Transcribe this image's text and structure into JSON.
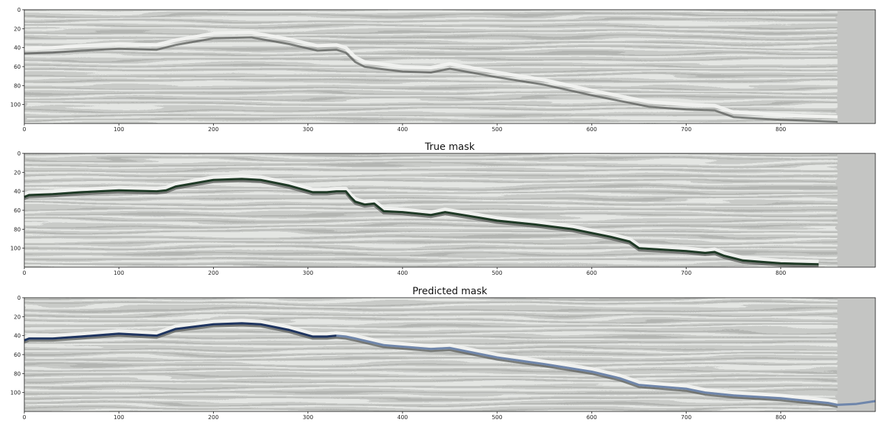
{
  "chart_data": [
    {
      "type": "heatmap",
      "title": "",
      "xlabel": "",
      "ylabel": "",
      "xlim": [
        0,
        900
      ],
      "ylim": [
        120,
        0
      ],
      "xticks": [
        0,
        100,
        200,
        300,
        400,
        500,
        600,
        700,
        800
      ],
      "yticks": [
        0,
        20,
        40,
        60,
        80,
        100
      ],
      "data_extent_x": 860,
      "grid": false,
      "horizon": {
        "x": [
          0,
          30,
          60,
          100,
          140,
          160,
          200,
          240,
          280,
          310,
          330,
          340,
          350,
          360,
          375,
          400,
          430,
          450,
          500,
          550,
          600,
          640,
          660,
          700,
          730,
          750,
          800,
          860
        ],
        "y": [
          44,
          43,
          41,
          39,
          40,
          35,
          28,
          27,
          34,
          41,
          40,
          43,
          53,
          58,
          60,
          63,
          64,
          60,
          69,
          77,
          88,
          96,
          100,
          103,
          104,
          111,
          114,
          116
        ]
      }
    },
    {
      "type": "heatmap",
      "title": "True mask",
      "xlabel": "",
      "ylabel": "",
      "xlim": [
        0,
        900
      ],
      "ylim": [
        120,
        0
      ],
      "xticks": [
        0,
        100,
        200,
        300,
        400,
        500,
        600,
        700,
        800
      ],
      "yticks": [
        0,
        20,
        40,
        60,
        80,
        100
      ],
      "data_extent_x": 860,
      "grid": false,
      "mask_color": "#1f3a26",
      "mask_line": {
        "x": [
          0,
          5,
          30,
          60,
          100,
          140,
          150,
          160,
          200,
          230,
          250,
          280,
          305,
          320,
          330,
          340,
          345,
          350,
          360,
          370,
          375,
          380,
          400,
          430,
          445,
          470,
          500,
          540,
          580,
          620,
          640,
          650,
          700,
          720,
          730,
          740,
          760,
          800,
          840
        ],
        "y": [
          46,
          44,
          43,
          41,
          39,
          40,
          39,
          35,
          28,
          27,
          28,
          34,
          41,
          41,
          40,
          40,
          46,
          51,
          54,
          53,
          57,
          61,
          62,
          65,
          62,
          66,
          71,
          75,
          80,
          88,
          93,
          100,
          103,
          105,
          104,
          108,
          113,
          116,
          117
        ]
      }
    },
    {
      "type": "heatmap",
      "title": "Predicted mask",
      "xlabel": "",
      "ylabel": "",
      "xlim": [
        0,
        900
      ],
      "ylim": [
        120,
        0
      ],
      "xticks": [
        0,
        100,
        200,
        300,
        400,
        500,
        600,
        700,
        800
      ],
      "yticks": [
        0,
        20,
        40,
        60,
        80,
        100
      ],
      "data_extent_x": 860,
      "grid": false,
      "mask_color_dark": "#1f3560",
      "mask_color_light": "#6f86ab",
      "mask_split_x": 330,
      "mask_line": {
        "x": [
          0,
          5,
          30,
          60,
          100,
          140,
          160,
          200,
          230,
          250,
          280,
          305,
          320,
          330,
          340,
          350,
          380,
          430,
          450,
          500,
          550,
          600,
          630,
          650,
          700,
          720,
          750,
          800,
          850,
          860,
          880,
          900
        ],
        "y": [
          45,
          43,
          43,
          41,
          38,
          40,
          33,
          28,
          27,
          28,
          34,
          41,
          41,
          40,
          41,
          43,
          50,
          54,
          53,
          63,
          70,
          78,
          85,
          92,
          96,
          100,
          103,
          106,
          111,
          113,
          112,
          109
        ]
      }
    }
  ]
}
